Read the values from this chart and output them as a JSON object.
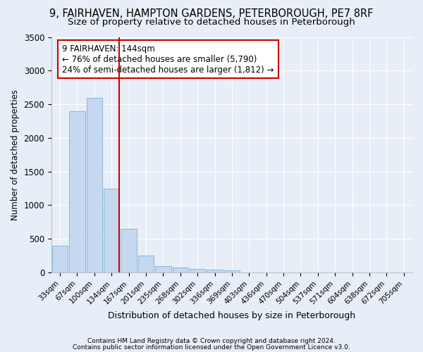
{
  "title1": "9, FAIRHAVEN, HAMPTON GARDENS, PETERBOROUGH, PE7 8RF",
  "title2": "Size of property relative to detached houses in Peterborough",
  "xlabel": "Distribution of detached houses by size in Peterborough",
  "ylabel": "Number of detached properties",
  "footnote1": "Contains HM Land Registry data © Crown copyright and database right 2024.",
  "footnote2": "Contains public sector information licensed under the Open Government Licence v3.0.",
  "categories": [
    "33sqm",
    "67sqm",
    "100sqm",
    "134sqm",
    "167sqm",
    "201sqm",
    "235sqm",
    "268sqm",
    "302sqm",
    "336sqm",
    "369sqm",
    "403sqm",
    "436sqm",
    "470sqm",
    "504sqm",
    "537sqm",
    "571sqm",
    "604sqm",
    "638sqm",
    "672sqm",
    "705sqm"
  ],
  "values": [
    400,
    2400,
    2600,
    1250,
    650,
    250,
    100,
    70,
    55,
    45,
    30,
    0,
    0,
    0,
    0,
    0,
    0,
    0,
    0,
    0,
    0
  ],
  "bar_color": "#c5d8f0",
  "bar_edge_color": "#8ab4d8",
  "vline_x_index": 3,
  "vline_color": "#cc0000",
  "annotation_text": "9 FAIRHAVEN: 144sqm\n← 76% of detached houses are smaller (5,790)\n24% of semi-detached houses are larger (1,812) →",
  "annotation_box_color": "#ffffff",
  "annotation_box_edge": "#cc0000",
  "ylim": [
    0,
    3500
  ],
  "yticks": [
    0,
    500,
    1000,
    1500,
    2000,
    2500,
    3000,
    3500
  ],
  "bg_color": "#e8eef8",
  "grid_color": "#ffffff",
  "title_fontsize": 10.5,
  "subtitle_fontsize": 9.5
}
